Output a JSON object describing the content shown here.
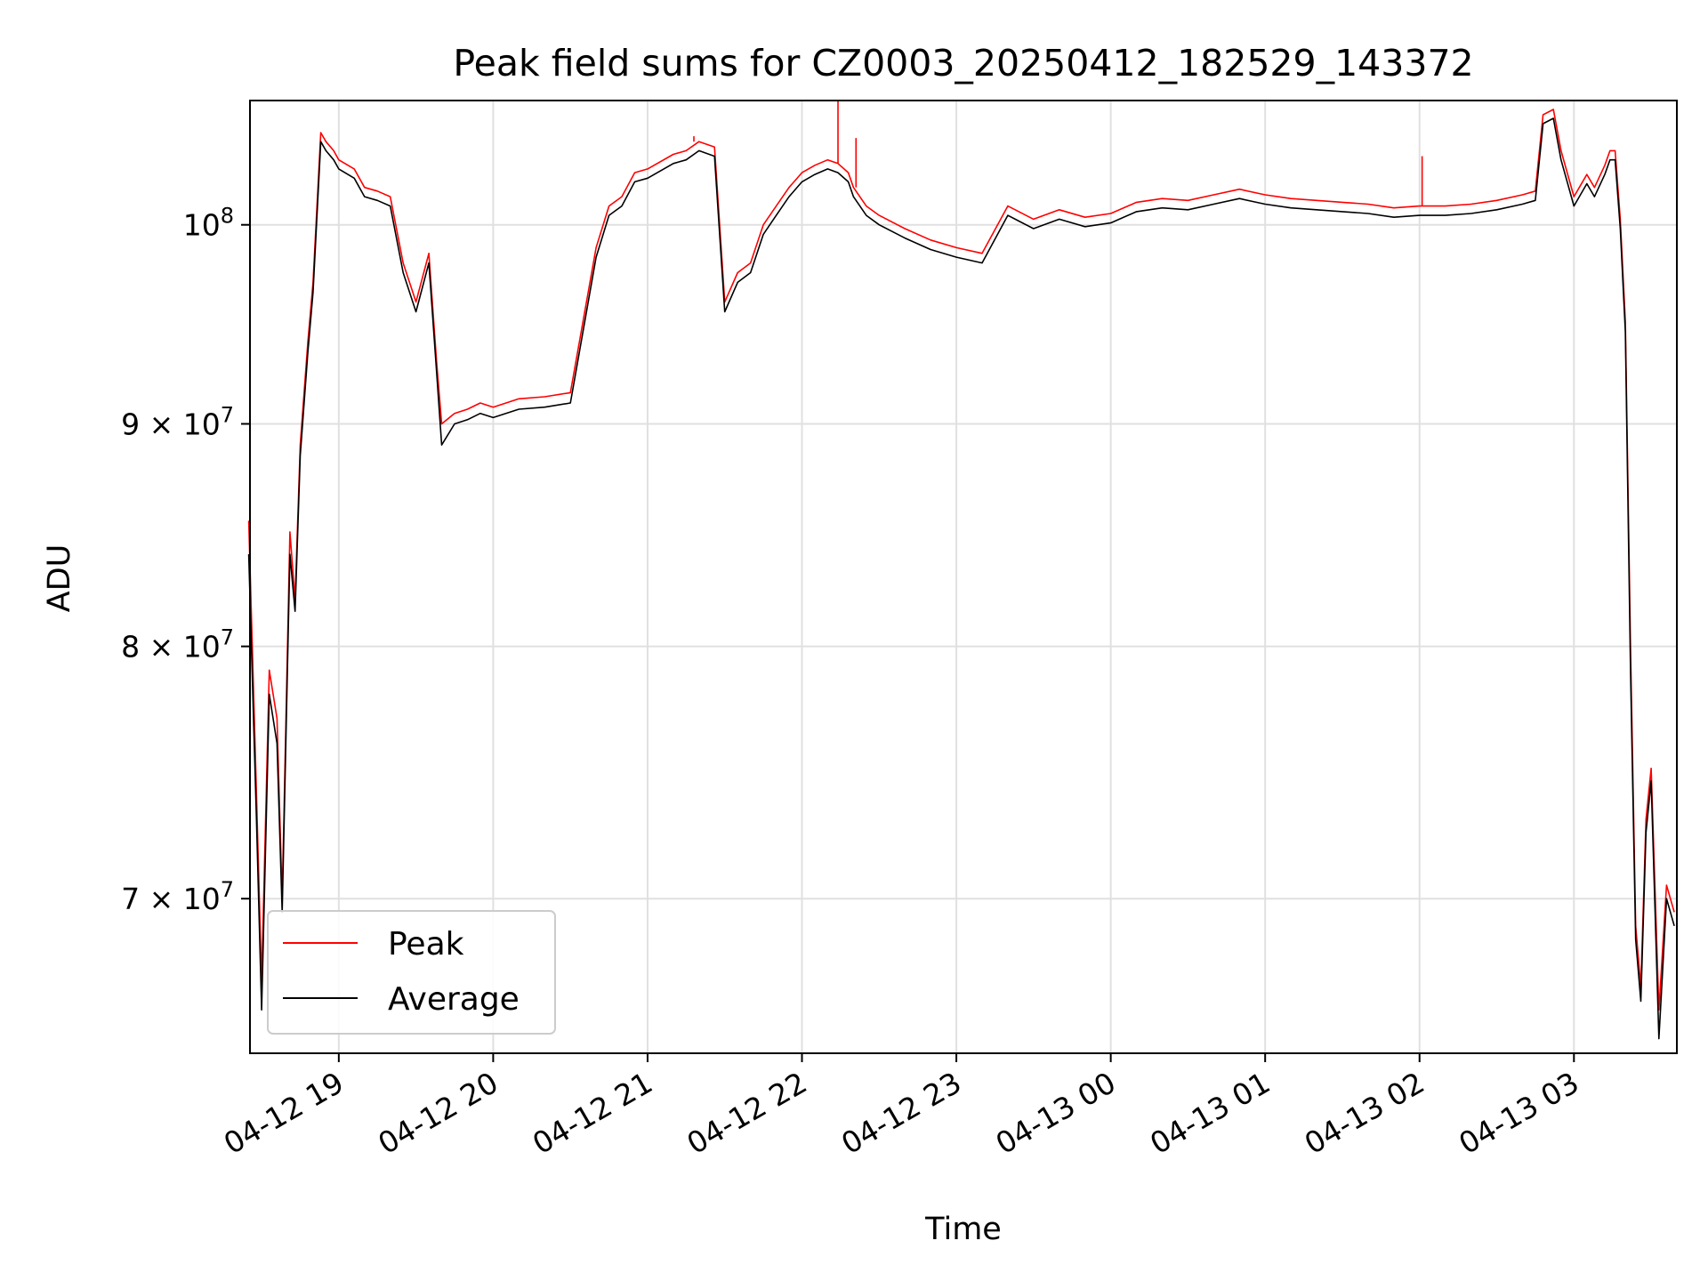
{
  "chart_data": {
    "type": "line",
    "title": "Peak field sums for CZ0003_20250412_182529_143372",
    "xlabel": "Time",
    "ylabel": "ADU",
    "y_scale": "log",
    "ylim": [
      64500000,
      106800000
    ],
    "xlim": [
      "2025-04-12T18:25:29",
      "2025-04-13T03:40:00"
    ],
    "grid": true,
    "legend_position": "lower-left",
    "x_ticks": [
      {
        "t": "2025-04-12T19:00",
        "label": "04-12 19"
      },
      {
        "t": "2025-04-12T20:00",
        "label": "04-12 20"
      },
      {
        "t": "2025-04-12T21:00",
        "label": "04-12 21"
      },
      {
        "t": "2025-04-12T22:00",
        "label": "04-12 22"
      },
      {
        "t": "2025-04-12T23:00",
        "label": "04-12 23"
      },
      {
        "t": "2025-04-13T00:00",
        "label": "04-13 00"
      },
      {
        "t": "2025-04-13T01:00",
        "label": "04-13 01"
      },
      {
        "t": "2025-04-13T02:00",
        "label": "04-13 02"
      },
      {
        "t": "2025-04-13T03:00",
        "label": "04-13 03"
      }
    ],
    "y_ticks": [
      {
        "value": 100000000,
        "base": "10",
        "exp": "8",
        "mantissa": ""
      },
      {
        "value": 90000000,
        "base": "10",
        "exp": "7",
        "mantissa": "9"
      },
      {
        "value": 80000000,
        "base": "10",
        "exp": "7",
        "mantissa": "8"
      },
      {
        "value": 70000000,
        "base": "10",
        "exp": "7",
        "mantissa": "7"
      }
    ],
    "series": [
      {
        "name": "Peak",
        "color": "#ff0000",
        "x": [
          "2025-04-12T18:25",
          "2025-04-12T18:28",
          "2025-04-12T18:30",
          "2025-04-12T18:33",
          "2025-04-12T18:36",
          "2025-04-12T18:38",
          "2025-04-12T18:41",
          "2025-04-12T18:43",
          "2025-04-12T18:45",
          "2025-04-12T18:48",
          "2025-04-12T18:50",
          "2025-04-12T18:53",
          "2025-04-12T18:55",
          "2025-04-12T18:58",
          "2025-04-12T19:00",
          "2025-04-12T19:06",
          "2025-04-12T19:10",
          "2025-04-12T19:15",
          "2025-04-12T19:20",
          "2025-04-12T19:25",
          "2025-04-12T19:30",
          "2025-04-12T19:35",
          "2025-04-12T19:38",
          "2025-04-12T19:40",
          "2025-04-12T19:45",
          "2025-04-12T19:50",
          "2025-04-12T19:55",
          "2025-04-12T20:00",
          "2025-04-12T20:10",
          "2025-04-12T20:20",
          "2025-04-12T20:30",
          "2025-04-12T20:40",
          "2025-04-12T20:45",
          "2025-04-12T20:50",
          "2025-04-12T20:55",
          "2025-04-12T21:00",
          "2025-04-12T21:10",
          "2025-04-12T21:15",
          "2025-04-12T21:20",
          "2025-04-12T21:26",
          "2025-04-12T21:30",
          "2025-04-12T21:35",
          "2025-04-12T21:40",
          "2025-04-12T21:45",
          "2025-04-12T21:50",
          "2025-04-12T21:55",
          "2025-04-12T22:00",
          "2025-04-12T22:05",
          "2025-04-12T22:10",
          "2025-04-12T22:14",
          "2025-04-12T22:18",
          "2025-04-12T22:20",
          "2025-04-12T22:25",
          "2025-04-12T22:30",
          "2025-04-12T22:40",
          "2025-04-12T22:50",
          "2025-04-12T23:00",
          "2025-04-12T23:10",
          "2025-04-12T23:20",
          "2025-04-12T23:30",
          "2025-04-12T23:40",
          "2025-04-12T23:50",
          "2025-04-13T00:00",
          "2025-04-13T00:10",
          "2025-04-13T00:20",
          "2025-04-13T00:30",
          "2025-04-13T00:40",
          "2025-04-13T00:50",
          "2025-04-13T01:00",
          "2025-04-13T01:10",
          "2025-04-13T01:20",
          "2025-04-13T01:30",
          "2025-04-13T01:40",
          "2025-04-13T01:50",
          "2025-04-13T02:00",
          "2025-04-13T02:10",
          "2025-04-13T02:20",
          "2025-04-13T02:30",
          "2025-04-13T02:40",
          "2025-04-13T02:45",
          "2025-04-13T02:48",
          "2025-04-13T02:52",
          "2025-04-13T02:55",
          "2025-04-13T03:00",
          "2025-04-13T03:05",
          "2025-04-13T03:08",
          "2025-04-13T03:12",
          "2025-04-13T03:14",
          "2025-04-13T03:16",
          "2025-04-13T03:18",
          "2025-04-13T03:20",
          "2025-04-13T03:22",
          "2025-04-13T03:24",
          "2025-04-13T03:26",
          "2025-04-13T03:28",
          "2025-04-13T03:30",
          "2025-04-13T03:33",
          "2025-04-13T03:36",
          "2025-04-13T03:39"
        ],
        "values": [
          85500000,
          74000000,
          67000000,
          79000000,
          77000000,
          70000000,
          85000000,
          82000000,
          89000000,
          94000000,
          97000000,
          105000000,
          104500000,
          104000000,
          103500000,
          103000000,
          102000000,
          101800000,
          101500000,
          98000000,
          96000000,
          98500000,
          93000000,
          90000000,
          90500000,
          90700000,
          91000000,
          90800000,
          91200000,
          91300000,
          91500000,
          98800000,
          101000000,
          101500000,
          102800000,
          103000000,
          103800000,
          104000000,
          104500000,
          104200000,
          96000000,
          97500000,
          98000000,
          100000000,
          101000000,
          102000000,
          102800000,
          103200000,
          103500000,
          103300000,
          102800000,
          102000000,
          101000000,
          100500000,
          99800000,
          99200000,
          98800000,
          98500000,
          101000000,
          100300000,
          100800000,
          100400000,
          100600000,
          101200000,
          101400000,
          101300000,
          101600000,
          101900000,
          101600000,
          101400000,
          101300000,
          101200000,
          101100000,
          100900000,
          101000000,
          101000000,
          101100000,
          101300000,
          101600000,
          101800000,
          106000000,
          106300000,
          104000000,
          101500000,
          102700000,
          102000000,
          103200000,
          104000000,
          104000000,
          100300000,
          95000000,
          80000000,
          69000000,
          66800000,
          73000000,
          75000000,
          66000000,
          70500000,
          69500000
        ],
        "peak_spikes": [
          {
            "x": "2025-04-12T22:14",
            "value": 106800000
          },
          {
            "x": "2025-04-12T22:21",
            "value": 104700000
          },
          {
            "x": "2025-04-12T21:18",
            "value": 104800000
          },
          {
            "x": "2025-04-13T02:01",
            "value": 103700000
          }
        ]
      },
      {
        "name": "Average",
        "color": "#000000",
        "x": [
          "2025-04-12T18:25",
          "2025-04-12T18:28",
          "2025-04-12T18:30",
          "2025-04-12T18:33",
          "2025-04-12T18:36",
          "2025-04-12T18:38",
          "2025-04-12T18:41",
          "2025-04-12T18:43",
          "2025-04-12T18:45",
          "2025-04-12T18:48",
          "2025-04-12T18:50",
          "2025-04-12T18:53",
          "2025-04-12T18:55",
          "2025-04-12T18:58",
          "2025-04-12T19:00",
          "2025-04-12T19:06",
          "2025-04-12T19:10",
          "2025-04-12T19:15",
          "2025-04-12T19:20",
          "2025-04-12T19:25",
          "2025-04-12T19:30",
          "2025-04-12T19:35",
          "2025-04-12T19:38",
          "2025-04-12T19:40",
          "2025-04-12T19:45",
          "2025-04-12T19:50",
          "2025-04-12T19:55",
          "2025-04-12T20:00",
          "2025-04-12T20:10",
          "2025-04-12T20:20",
          "2025-04-12T20:30",
          "2025-04-12T20:40",
          "2025-04-12T20:45",
          "2025-04-12T20:50",
          "2025-04-12T20:55",
          "2025-04-12T21:00",
          "2025-04-12T21:10",
          "2025-04-12T21:15",
          "2025-04-12T21:20",
          "2025-04-12T21:26",
          "2025-04-12T21:30",
          "2025-04-12T21:35",
          "2025-04-12T21:40",
          "2025-04-12T21:45",
          "2025-04-12T21:50",
          "2025-04-12T21:55",
          "2025-04-12T22:00",
          "2025-04-12T22:05",
          "2025-04-12T22:10",
          "2025-04-12T22:14",
          "2025-04-12T22:18",
          "2025-04-12T22:20",
          "2025-04-12T22:25",
          "2025-04-12T22:30",
          "2025-04-12T22:40",
          "2025-04-12T22:50",
          "2025-04-12T23:00",
          "2025-04-12T23:10",
          "2025-04-12T23:20",
          "2025-04-12T23:30",
          "2025-04-12T23:40",
          "2025-04-12T23:50",
          "2025-04-13T00:00",
          "2025-04-13T00:10",
          "2025-04-13T00:20",
          "2025-04-13T00:30",
          "2025-04-13T00:40",
          "2025-04-13T00:50",
          "2025-04-13T01:00",
          "2025-04-13T01:10",
          "2025-04-13T01:20",
          "2025-04-13T01:30",
          "2025-04-13T01:40",
          "2025-04-13T01:50",
          "2025-04-13T02:00",
          "2025-04-13T02:10",
          "2025-04-13T02:20",
          "2025-04-13T02:30",
          "2025-04-13T02:40",
          "2025-04-13T02:45",
          "2025-04-13T02:48",
          "2025-04-13T02:52",
          "2025-04-13T02:55",
          "2025-04-13T03:00",
          "2025-04-13T03:05",
          "2025-04-13T03:08",
          "2025-04-13T03:12",
          "2025-04-13T03:14",
          "2025-04-13T03:16",
          "2025-04-13T03:18",
          "2025-04-13T03:20",
          "2025-04-13T03:22",
          "2025-04-13T03:24",
          "2025-04-13T03:26",
          "2025-04-13T03:28",
          "2025-04-13T03:30",
          "2025-04-13T03:33",
          "2025-04-13T03:36",
          "2025-04-13T03:39"
        ],
        "values": [
          84000000,
          73000000,
          66000000,
          78000000,
          76000000,
          69500000,
          84000000,
          81500000,
          88500000,
          93500000,
          96500000,
          104500000,
          104000000,
          103500000,
          103000000,
          102500000,
          101500000,
          101300000,
          101000000,
          97500000,
          95500000,
          98000000,
          92500000,
          89000000,
          90000000,
          90200000,
          90500000,
          90300000,
          90700000,
          90800000,
          91000000,
          98300000,
          100500000,
          101000000,
          102300000,
          102500000,
          103300000,
          103500000,
          104000000,
          103700000,
          95500000,
          97000000,
          97500000,
          99500000,
          100500000,
          101500000,
          102300000,
          102700000,
          103000000,
          102800000,
          102300000,
          101500000,
          100500000,
          100000000,
          99300000,
          98700000,
          98300000,
          98000000,
          100500000,
          99800000,
          100300000,
          99900000,
          100100000,
          100700000,
          100900000,
          100800000,
          101100000,
          101400000,
          101100000,
          100900000,
          100800000,
          100700000,
          100600000,
          100400000,
          100500000,
          100500000,
          100600000,
          100800000,
          101100000,
          101300000,
          105500000,
          105800000,
          103500000,
          101000000,
          102200000,
          101500000,
          102700000,
          103500000,
          103500000,
          99800000,
          94500000,
          79000000,
          68500000,
          66300000,
          72500000,
          74500000,
          65000000,
          70000000,
          69000000
        ]
      }
    ]
  }
}
